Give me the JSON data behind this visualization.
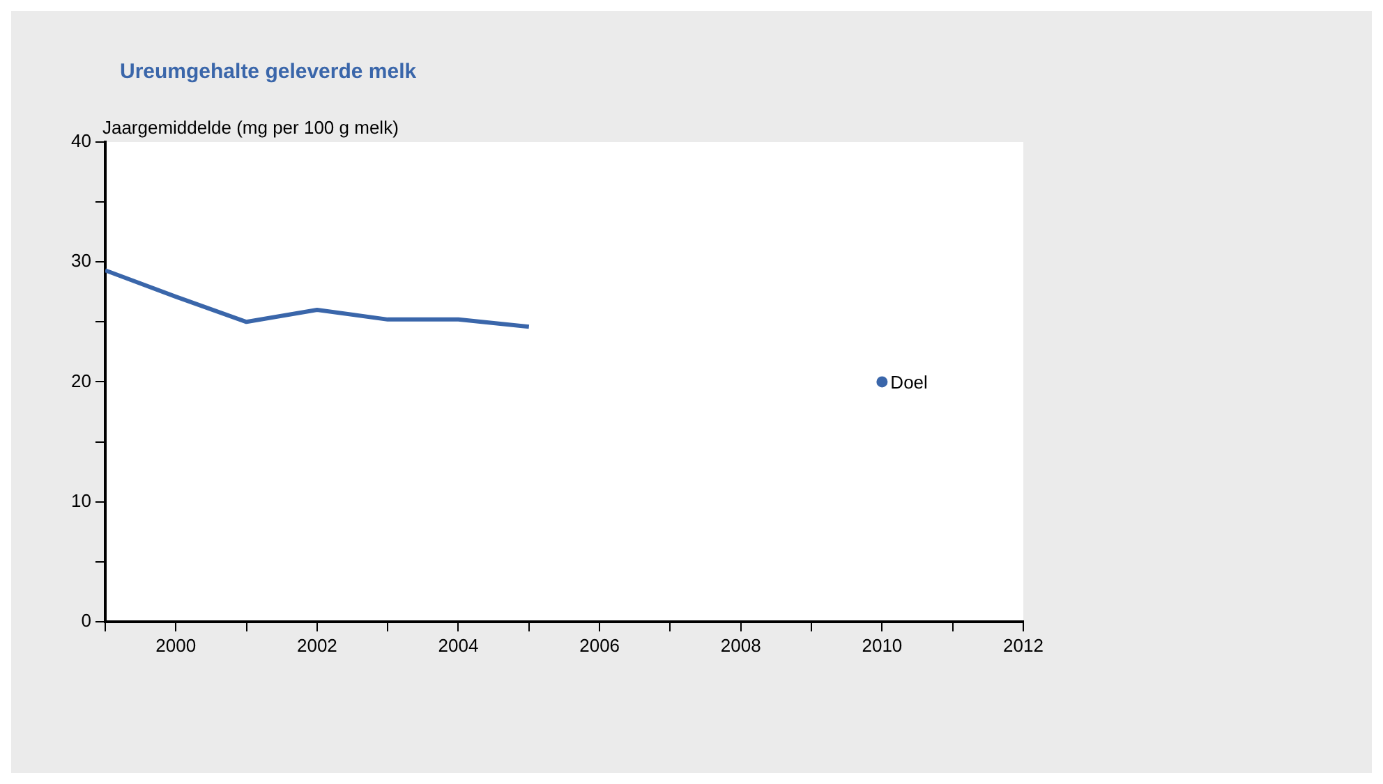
{
  "chart_data": {
    "type": "line",
    "title": "Ureumgehalte geleverde melk",
    "ylabel": "Jaargemiddelde (mg per 100 g melk)",
    "series": [
      {
        "color": "#3a66aa",
        "x": [
          1999,
          2000,
          2001,
          2002,
          2003,
          2004,
          2005
        ],
        "values": [
          29.3,
          27.1,
          25.0,
          26.0,
          25.2,
          25.2,
          24.6
        ],
        "marker": "none"
      },
      {
        "name": "Doel",
        "type": "scatter",
        "color": "#3a66aa",
        "x": [
          2010
        ],
        "values": [
          20
        ],
        "marker": "circle"
      }
    ],
    "xlim": [
      1999,
      2012
    ],
    "xticks": [
      {
        "value": 1999,
        "label": null
      },
      2000,
      {
        "value": 2001,
        "label": null
      },
      2002,
      {
        "value": 2003,
        "label": null
      },
      2004,
      {
        "value": 2005,
        "label": null
      },
      2006,
      {
        "value": 2007,
        "label": null
      },
      2008,
      {
        "value": 2009,
        "label": null
      },
      2010,
      {
        "value": 2011,
        "label": null
      },
      2012
    ],
    "ylim": [
      0,
      40
    ],
    "yticks": [
      0,
      {
        "value": 5,
        "label": null
      },
      10,
      {
        "value": 15,
        "label": null
      },
      20,
      {
        "value": 25,
        "label": null
      },
      30,
      {
        "value": 35,
        "label": null
      },
      40
    ],
    "grid": false,
    "legend": false
  }
}
